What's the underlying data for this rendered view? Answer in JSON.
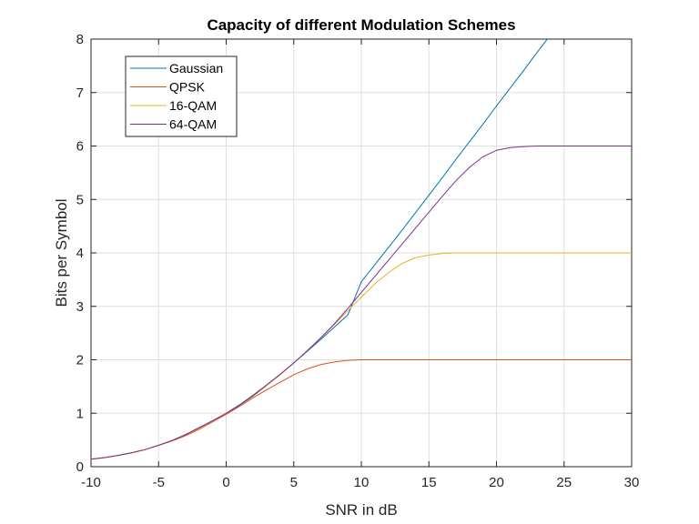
{
  "chart_data": {
    "type": "line",
    "title": "Capacity of different Modulation Schemes",
    "xlabel": "SNR in dB",
    "ylabel": "Bits per Symbol",
    "xlim": [
      -10,
      30
    ],
    "ylim": [
      0,
      8
    ],
    "xticks": [
      -10,
      -5,
      0,
      5,
      10,
      15,
      20,
      25,
      30
    ],
    "yticks": [
      0,
      1,
      2,
      3,
      4,
      5,
      6,
      7,
      8
    ],
    "grid": true,
    "legend_position": "top-left",
    "x": [
      -10,
      -9,
      -8,
      -7,
      -6,
      -5,
      -4,
      -3,
      -2,
      -1,
      0,
      1,
      2,
      3,
      4,
      5,
      6,
      7,
      8,
      9,
      10,
      11,
      12,
      13,
      14,
      15,
      16,
      17,
      18,
      19,
      20,
      21,
      22,
      23,
      24,
      25,
      26,
      27,
      28,
      29,
      30
    ],
    "series": [
      {
        "name": "Gaussian",
        "color": "#0072BD",
        "values": [
          0.14,
          0.17,
          0.21,
          0.26,
          0.32,
          0.4,
          0.49,
          0.6,
          0.73,
          0.86,
          1.0,
          1.16,
          1.34,
          1.53,
          1.73,
          1.94,
          2.16,
          2.38,
          2.61,
          2.84,
          3.46,
          3.78,
          4.1,
          4.42,
          4.75,
          5.08,
          5.41,
          5.75,
          6.08,
          6.41,
          6.75,
          7.08,
          7.41,
          7.75,
          8.08,
          null,
          null,
          null,
          null,
          null,
          null
        ]
      },
      {
        "name": "QPSK",
        "color": "#D95319",
        "values": [
          0.14,
          0.17,
          0.21,
          0.26,
          0.32,
          0.4,
          0.48,
          0.58,
          0.7,
          0.84,
          0.98,
          1.13,
          1.29,
          1.44,
          1.58,
          1.72,
          1.83,
          1.91,
          1.96,
          1.99,
          2.0,
          2.0,
          2.0,
          2.0,
          2.0,
          2.0,
          2.0,
          2.0,
          2.0,
          2.0,
          2.0,
          2.0,
          2.0,
          2.0,
          2.0,
          2.0,
          2.0,
          2.0,
          2.0,
          2.0,
          2.0
        ]
      },
      {
        "name": "16-QAM",
        "color": "#EDB120",
        "values": [
          0.14,
          0.17,
          0.21,
          0.26,
          0.32,
          0.4,
          0.49,
          0.6,
          0.72,
          0.86,
          1.0,
          1.15,
          1.32,
          1.52,
          1.72,
          1.94,
          2.17,
          2.41,
          2.66,
          2.92,
          3.17,
          3.42,
          3.63,
          3.8,
          3.91,
          3.96,
          3.99,
          4.0,
          4.0,
          4.0,
          4.0,
          4.0,
          4.0,
          4.0,
          4.0,
          4.0,
          4.0,
          4.0,
          4.0,
          4.0,
          4.0
        ]
      },
      {
        "name": "64-QAM",
        "color": "#7E2F8E",
        "values": [
          0.14,
          0.17,
          0.21,
          0.26,
          0.32,
          0.4,
          0.49,
          0.6,
          0.73,
          0.86,
          1.0,
          1.15,
          1.33,
          1.53,
          1.73,
          1.94,
          2.17,
          2.41,
          2.67,
          2.96,
          3.26,
          3.56,
          3.86,
          4.16,
          4.46,
          4.76,
          5.06,
          5.35,
          5.6,
          5.8,
          5.92,
          5.97,
          5.99,
          6.0,
          6.0,
          6.0,
          6.0,
          6.0,
          6.0,
          6.0,
          6.0
        ]
      }
    ]
  }
}
